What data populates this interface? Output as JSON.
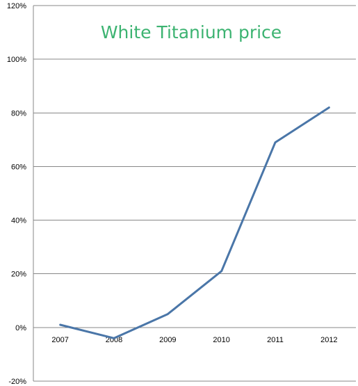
{
  "chart_data": {
    "type": "line",
    "title": "White Titanium price",
    "title_color": "#3cb371",
    "xlabel": "",
    "ylabel": "",
    "categories": [
      "2007",
      "2008",
      "2009",
      "2010",
      "2011",
      "2012"
    ],
    "series": [
      {
        "values": [
          1,
          -4,
          5,
          21,
          69,
          82
        ],
        "color": "#4a76a8"
      }
    ],
    "y_unit": "%",
    "ylim": [
      -20,
      120
    ],
    "y_ticks": [
      -20,
      0,
      20,
      40,
      60,
      80,
      100,
      120
    ],
    "y_tick_labels": [
      "-20%",
      "0%",
      "20%",
      "40%",
      "60%",
      "80%",
      "100%",
      "120%"
    ],
    "grid": true,
    "grid_color": "#878787",
    "legend": "none"
  }
}
